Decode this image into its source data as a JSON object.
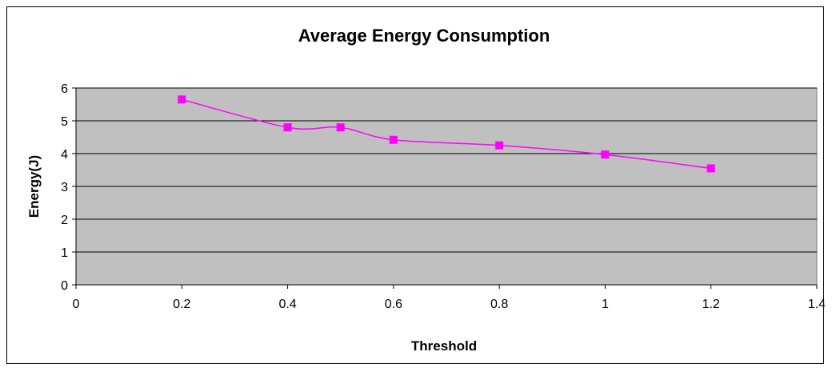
{
  "chart_data": {
    "type": "line",
    "title": "Average Energy Consumption",
    "xlabel": "Threshold",
    "ylabel": "Energy(J)",
    "xlim": [
      0,
      1.4
    ],
    "ylim": [
      0,
      6
    ],
    "x_ticks": [
      0,
      0.2,
      0.4,
      0.6,
      0.8,
      1,
      1.2,
      1.4
    ],
    "y_ticks": [
      0,
      1,
      2,
      3,
      4,
      5,
      6
    ],
    "x_tick_labels": [
      "0",
      "0.2",
      "0.4",
      "0.6",
      "0.8",
      "1",
      "1.2",
      "1.4"
    ],
    "y_tick_labels": [
      "0",
      "1",
      "2",
      "3",
      "4",
      "5",
      "6"
    ],
    "grid": "horizontal",
    "legend": "none",
    "series": [
      {
        "points": [
          {
            "x": 0.2,
            "y": 5.65
          },
          {
            "x": 0.4,
            "y": 4.8
          },
          {
            "x": 0.5,
            "y": 4.8
          },
          {
            "x": 0.6,
            "y": 4.42
          },
          {
            "x": 0.8,
            "y": 4.25
          },
          {
            "x": 1.0,
            "y": 3.97
          },
          {
            "x": 1.2,
            "y": 3.55
          }
        ],
        "color": "#ff00ff",
        "marker": "square"
      }
    ],
    "plot_background": "#c0c0c0",
    "gridline_color": "#000000"
  }
}
